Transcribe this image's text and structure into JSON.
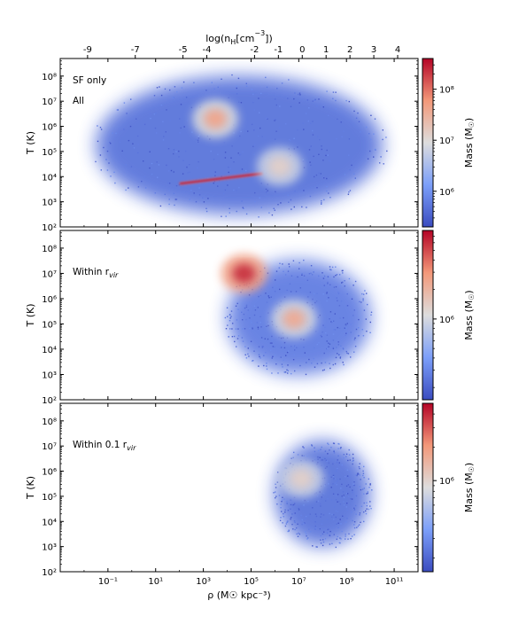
{
  "chart_data": [
    {
      "type": "heatmap",
      "panel_label": [
        "SF only",
        "All"
      ],
      "ylabel": "T (K)",
      "x_scale": "log",
      "y_scale": "log",
      "xlim": [
        0.001,
        1000000000000.0
      ],
      "ylim": [
        100,
        500000000
      ],
      "y_ticks": [
        {
          "value": 100,
          "label": "10²"
        },
        {
          "value": 1000,
          "label": "10³"
        },
        {
          "value": 10000,
          "label": "10⁴"
        },
        {
          "value": 100000,
          "label": "10⁵"
        },
        {
          "value": 1000000,
          "label": "10⁶"
        },
        {
          "value": 10000000,
          "label": "10⁷"
        },
        {
          "value": 100000000,
          "label": "10⁸"
        }
      ],
      "top_axis": {
        "label_base": "log(n",
        "label_sub": "H",
        "label_tail": "[cm",
        "label_sup": "−3",
        "label_end": "])",
        "ticks": [
          {
            "value": -9,
            "label": "-9"
          },
          {
            "value": -7,
            "label": "-7"
          },
          {
            "value": -5,
            "label": "-5"
          },
          {
            "value": -4,
            "label": "-4"
          },
          {
            "value": -2,
            "label": "-2"
          },
          {
            "value": -1,
            "label": "-1"
          },
          {
            "value": 0,
            "label": "0"
          },
          {
            "value": 1,
            "label": "1"
          },
          {
            "value": 2,
            "label": "2"
          },
          {
            "value": 3,
            "label": "3"
          },
          {
            "value": 4,
            "label": "4"
          }
        ]
      },
      "colorbar": {
        "label": "Mass (M",
        "label_sym": "☉",
        "label_end": ")",
        "cmap": "coolwarm",
        "min": 200000,
        "max": 400000000,
        "ticks": [
          {
            "value": 1000000,
            "label": "10⁶"
          },
          {
            "value": 10000000,
            "label": "10⁷"
          },
          {
            "value": 100000000,
            "label": "10⁸"
          }
        ]
      },
      "features": [
        {
          "name": "diffuse",
          "log_rho": [
            -1.5,
            10.5
          ],
          "log_T": [
            2.5,
            8.0
          ],
          "level": 0.12
        },
        {
          "name": "hot halo",
          "log_rho": 3.5,
          "log_T": 6.3,
          "level": 0.7
        },
        {
          "name": "cooling sequence",
          "log_rho_range": [
            2.0,
            5.5
          ],
          "log_T_range": [
            4.0,
            4.2
          ],
          "level": 0.95
        },
        {
          "name": "dense gas",
          "log_rho": 6.2,
          "log_T": 4.4,
          "level": 0.55
        }
      ]
    },
    {
      "type": "heatmap",
      "panel_label": [
        "Within r",
        "vir"
      ],
      "ylabel": "T (K)",
      "x_scale": "log",
      "y_scale": "log",
      "xlim": [
        0.001,
        1000000000000.0
      ],
      "ylim": [
        100,
        500000000
      ],
      "y_ticks": [
        {
          "value": 100,
          "label": "10²"
        },
        {
          "value": 1000,
          "label": "10³"
        },
        {
          "value": 10000,
          "label": "10⁴"
        },
        {
          "value": 100000,
          "label": "10⁵"
        },
        {
          "value": 1000000,
          "label": "10⁶"
        },
        {
          "value": 10000000,
          "label": "10⁷"
        },
        {
          "value": 100000000,
          "label": "10⁸"
        }
      ],
      "colorbar": {
        "label": "Mass (M",
        "label_sym": "☉",
        "label_end": ")",
        "cmap": "coolwarm",
        "min": 150000,
        "max": 8000000,
        "ticks": [
          {
            "value": 1000000,
            "label": "10⁶"
          }
        ]
      },
      "features": [
        {
          "name": "halo",
          "log_rho": [
            4.0,
            10.0
          ],
          "log_T": [
            3.0,
            7.5
          ],
          "level": 0.15
        },
        {
          "name": "hot peak",
          "log_rho": 4.7,
          "log_T": 7.0,
          "level": 0.92
        },
        {
          "name": "warm peak",
          "log_rho": 6.8,
          "log_T": 5.2,
          "level": 0.68
        }
      ]
    },
    {
      "type": "heatmap",
      "panel_label": [
        "Within 0.1 r",
        "vir"
      ],
      "ylabel": "T (K)",
      "xlabel": "ρ (M☉ kpc⁻³)",
      "x_scale": "log",
      "y_scale": "log",
      "xlim": [
        0.001,
        1000000000000.0
      ],
      "ylim": [
        100,
        500000000
      ],
      "x_ticks": [
        {
          "value": 0.1,
          "label": "10⁻¹"
        },
        {
          "value": 10,
          "label": "10¹"
        },
        {
          "value": 1000,
          "label": "10³"
        },
        {
          "value": 100000,
          "label": "10⁵"
        },
        {
          "value": 10000000,
          "label": "10⁷"
        },
        {
          "value": 1000000000,
          "label": "10⁹"
        },
        {
          "value": 100000000000,
          "label": "10¹¹"
        }
      ],
      "y_ticks": [
        {
          "value": 100,
          "label": "10²"
        },
        {
          "value": 1000,
          "label": "10³"
        },
        {
          "value": 10000,
          "label": "10⁴"
        },
        {
          "value": 100000,
          "label": "10⁵"
        },
        {
          "value": 1000000,
          "label": "10⁶"
        },
        {
          "value": 10000000,
          "label": "10⁷"
        },
        {
          "value": 100000000,
          "label": "10⁸"
        }
      ],
      "colorbar": {
        "label": "Mass (M",
        "label_sym": "☉",
        "label_end": ")",
        "cmap": "coolwarm",
        "min": 150000,
        "max": 5000000,
        "ticks": [
          {
            "value": 1000000,
            "label": "10⁶"
          }
        ]
      },
      "features": [
        {
          "name": "core",
          "log_rho": [
            6.0,
            10.0
          ],
          "log_T": [
            3.0,
            7.2
          ],
          "level": 0.12
        },
        {
          "name": "peak",
          "log_rho": 7.1,
          "log_T": 5.7,
          "level": 0.55
        }
      ]
    }
  ]
}
